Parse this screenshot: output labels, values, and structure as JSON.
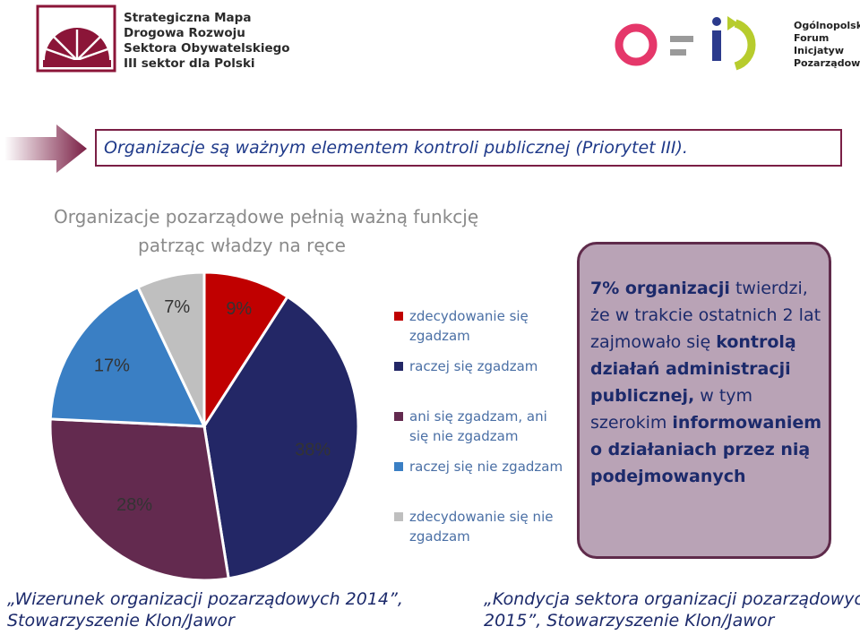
{
  "header": {
    "left_logo_lines": [
      "Strategiczna Mapa",
      "Drogowa Rozwoju",
      "Sektora Obywatelskiego",
      "III sektor dla Polski"
    ],
    "right_logo_lines": [
      "Ogólnopolskie",
      "Forum",
      "Inicjatyw",
      "Pozarządowych"
    ]
  },
  "banner": {
    "text": "Organizacje są ważnym elementem kontroli publicznej (Priorytet III)."
  },
  "chart_data": {
    "type": "pie",
    "title_lines": [
      "Organizacje pozarządowe pełnią ważną funkcję",
      "patrząc władzy na ręce"
    ],
    "title": "Organizacje pozarządowe pełnią ważną funkcję patrząc władzy na ręce",
    "categories": [
      "zdecydowanie się zgadzam",
      "raczej się zgadzam",
      "ani się zgadzam, ani się nie zgadzam",
      "raczej się nie zgadzam",
      "zdecydowanie się nie zgadzam"
    ],
    "values": [
      9,
      38,
      28,
      17,
      7
    ],
    "value_labels": [
      "9%",
      "38%",
      "28%",
      "17%",
      "7%"
    ],
    "colors": [
      "#c00000",
      "#232766",
      "#632a4f",
      "#3a7fc4",
      "#bfbfbf"
    ],
    "legend_lines": [
      [
        "zdecydowanie się",
        "zgadzam"
      ],
      [
        "raczej się zgadzam"
      ],
      [
        "ani się zgadzam, ani",
        "się nie zgadzam"
      ],
      [
        "raczej się nie zgadzam"
      ],
      [
        "zdecydowanie się nie",
        "zgadzam"
      ]
    ],
    "legend_position": "right",
    "start_angle_deg": 0,
    "direction": "clockwise"
  },
  "callout": {
    "parts": [
      {
        "text": "7% organizacji",
        "bold": true
      },
      {
        "text": " twierdzi, że w trakcie ostatnich 2 lat zajmowało się ",
        "bold": false
      },
      {
        "text": "kontrolą działań administracji publicznej,",
        "bold": true
      },
      {
        "text": " w tym szerokim ",
        "bold": false
      },
      {
        "text": "informowaniem o działaniach przez nią podejmowanych",
        "bold": true
      }
    ]
  },
  "sources": {
    "left": [
      "„Wizerunek organizacji pozarządowych 2014”,",
      "Stowarzyszenie Klon/Jawor"
    ],
    "right": [
      "„Kondycja sektora organizacji pozarządowych",
      "2015”, Stowarzyszenie Klon/Jawor"
    ]
  },
  "colors": {
    "banner_border": "#7a1f45",
    "banner_text": "#1f3a8a",
    "callout_fill": "#b9a3b6",
    "callout_border": "#5f2b4b",
    "legend_text": "#4a6fa5"
  }
}
